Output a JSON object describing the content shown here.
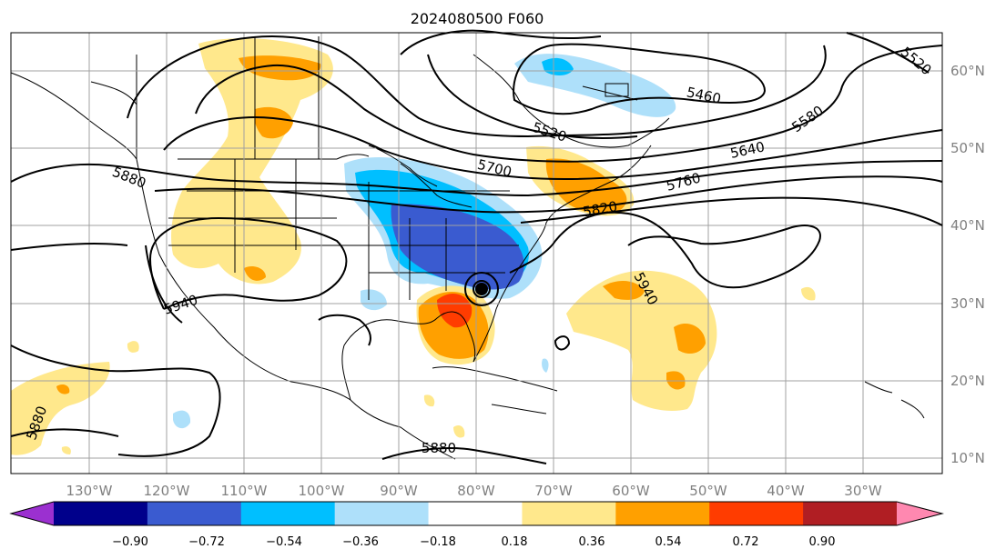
{
  "title": "2024080500 F060",
  "map": {
    "longitude_labels": [
      "130°W",
      "120°W",
      "110°W",
      "100°W",
      "90°W",
      "80°W",
      "70°W",
      "60°W",
      "50°W",
      "40°W",
      "30°W"
    ],
    "latitude_labels": [
      "60°N",
      "50°N",
      "40°N",
      "30°N",
      "20°N",
      "10°N"
    ],
    "contour_labels": [
      "5460",
      "5520",
      "5520",
      "5580",
      "5640",
      "5700",
      "5760",
      "5820",
      "5880",
      "5880",
      "5880",
      "5940",
      "5940"
    ],
    "feature": "tropical-cyclone-symbol"
  },
  "colorbar": {
    "ticks": [
      "−0.90",
      "−0.72",
      "−0.54",
      "−0.36",
      "−0.18",
      "0.18",
      "0.36",
      "0.54",
      "0.72",
      "0.90"
    ],
    "colors": [
      "#9b30d0",
      "#00008b",
      "#3a5bd0",
      "#00bfff",
      "#aee0fa",
      "#ffffff",
      "#ffe88c",
      "#ffa000",
      "#ff3c00",
      "#b01e23",
      "#ff88b0"
    ],
    "extend": "both"
  }
}
